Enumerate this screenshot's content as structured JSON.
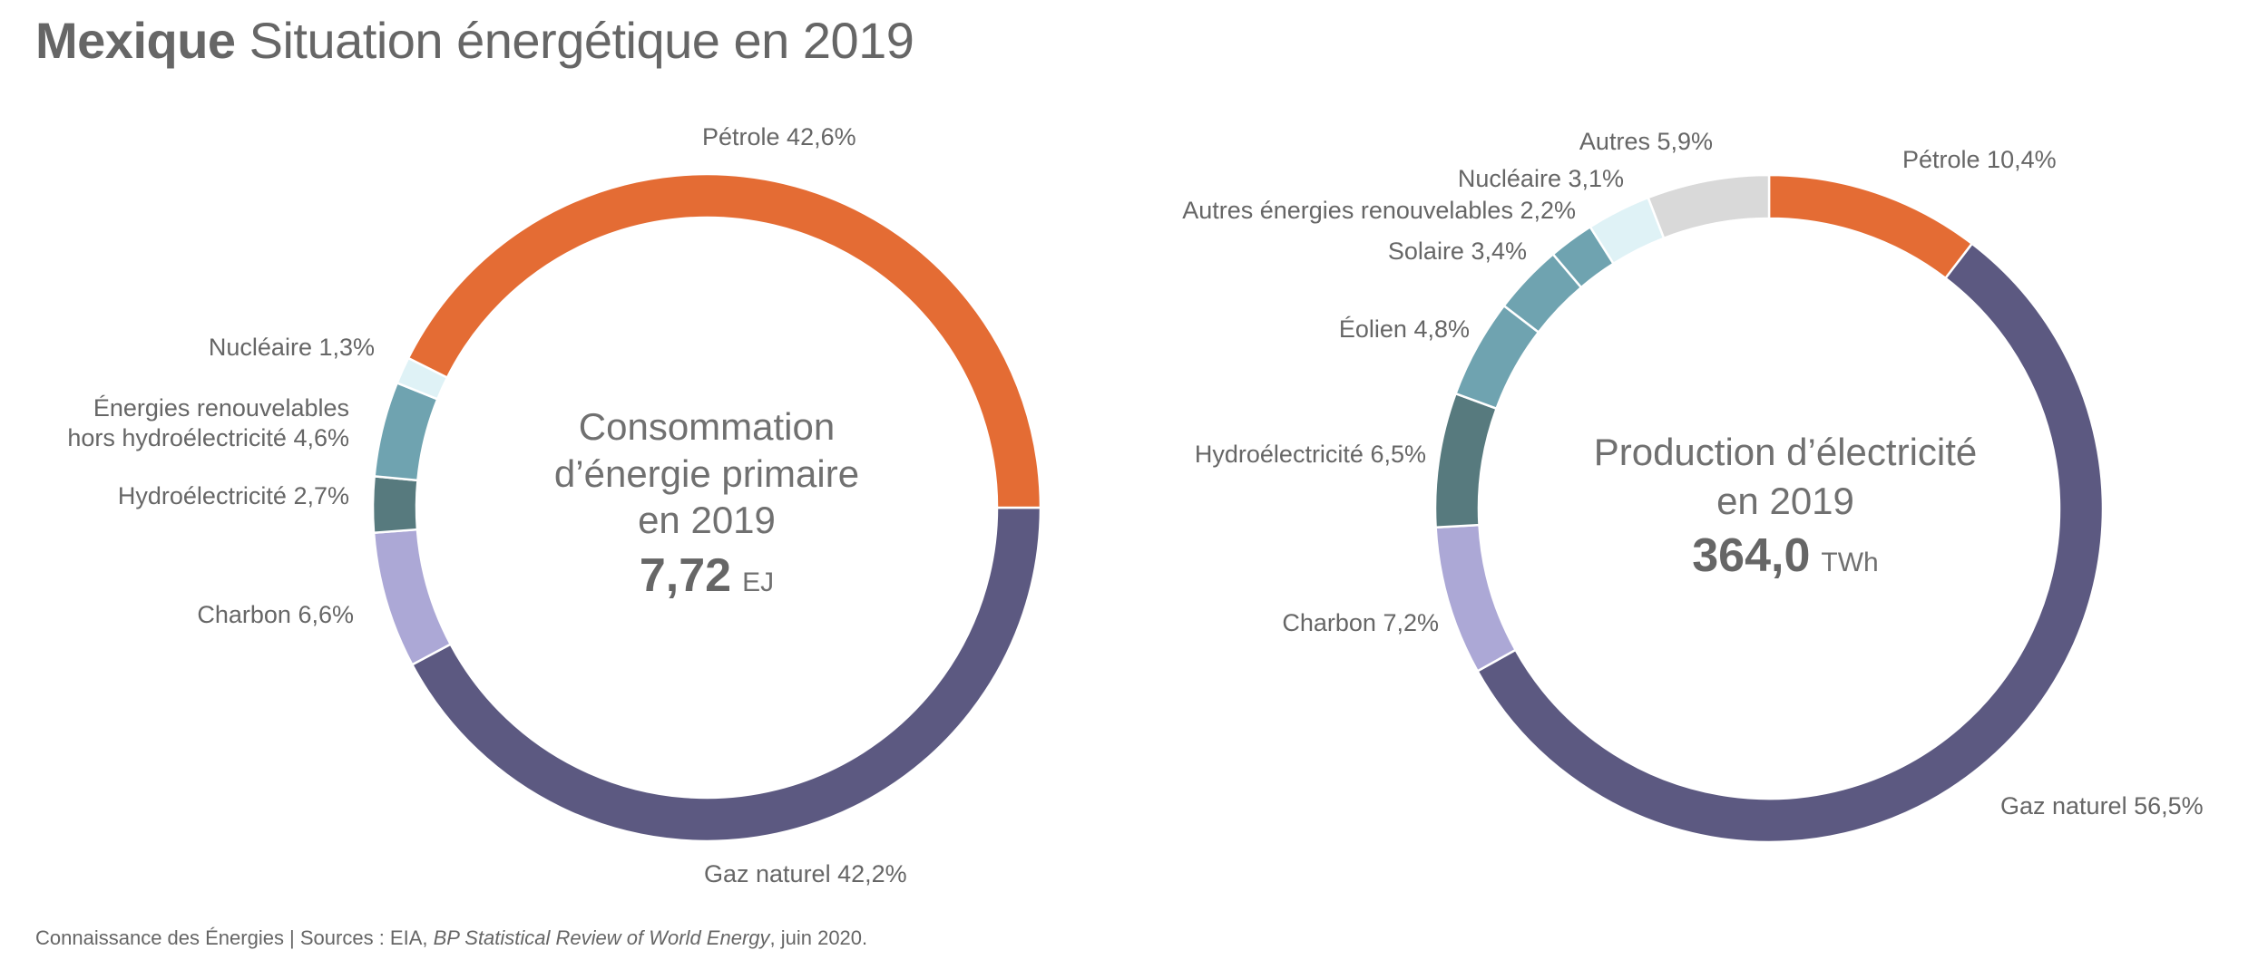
{
  "title": {
    "bold": "Mexique",
    "rest": "Situation énergétique en 2019"
  },
  "footer": {
    "prefix": "Connaissance des Énergies | Sources : EIA, ",
    "italic": "BP Statistical Review of World Energy",
    "suffix": ", juin 2020."
  },
  "chart_data": [
    {
      "type": "pie",
      "donut": true,
      "title": "Consommation d’énergie primaire en 2019",
      "center_lines": [
        "Consommation",
        "d’énergie primaire",
        "en 2019"
      ],
      "total_value": "7,72",
      "total_unit": "EJ",
      "slices": [
        {
          "name": "Gaz naturel",
          "value": 42.2,
          "label": "Gaz naturel 42,2%",
          "color": "#5C5981"
        },
        {
          "name": "Charbon",
          "value": 6.6,
          "label": "Charbon 6,6%",
          "color": "#ACA8D6"
        },
        {
          "name": "Hydroélectricité",
          "value": 2.7,
          "label": "Hydroélectricité 2,7%",
          "color": "#577A7E"
        },
        {
          "name": "Énergies renouvelables hors hydroélectricité",
          "value": 4.6,
          "label_lines": [
            "Énergies renouvelables",
            "hors hydroélectricité 4,6%"
          ],
          "color": "#6FA3B0"
        },
        {
          "name": "Nucléaire",
          "value": 1.3,
          "label": "Nucléaire 1,3%",
          "color": "#DFF2F6"
        },
        {
          "name": "Pétrole",
          "value": 42.6,
          "label": "Pétrole 42,6%",
          "color": "#E46C34"
        }
      ]
    },
    {
      "type": "pie",
      "donut": true,
      "title": "Production d’électricité en 2019",
      "center_lines": [
        "Production d’électricité",
        "en 2019"
      ],
      "total_value": "364,0",
      "total_unit": "TWh",
      "slices": [
        {
          "name": "Pétrole",
          "value": 10.4,
          "label": "Pétrole 10,4%",
          "color": "#E46C34"
        },
        {
          "name": "Gaz naturel",
          "value": 56.5,
          "label": "Gaz naturel 56,5%",
          "color": "#5C5981"
        },
        {
          "name": "Charbon",
          "value": 7.2,
          "label": "Charbon 7,2%",
          "color": "#ACA8D6"
        },
        {
          "name": "Hydroélectricité",
          "value": 6.5,
          "label": "Hydroélectricité 6,5%",
          "color": "#577A7E"
        },
        {
          "name": "Éolien",
          "value": 4.8,
          "label": "Éolien 4,8%",
          "color": "#6FA3B0"
        },
        {
          "name": "Solaire",
          "value": 3.4,
          "label": "Solaire 3,4%",
          "color": "#6FA3B0"
        },
        {
          "name": "Autres énergies renouvelables",
          "value": 2.2,
          "label": "Autres énergies renouvelables 2,2%",
          "color": "#6FA3B0"
        },
        {
          "name": "Nucléaire",
          "value": 3.1,
          "label": "Nucléaire 3,1%",
          "color": "#DFF2F6"
        },
        {
          "name": "Autres",
          "value": 5.9,
          "label": "Autres 5,9%",
          "color": "#D9D9D9"
        }
      ]
    }
  ]
}
